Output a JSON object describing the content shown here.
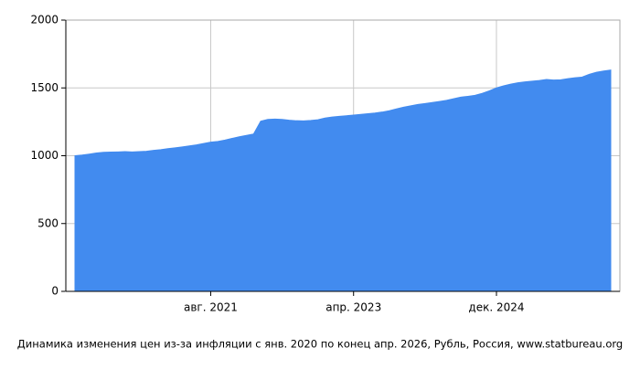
{
  "chart_data": {
    "type": "area",
    "caption": "Динамика изменения цен из-за инфляции с янв. 2020 по конец апр. 2026, Рубль, Россия, www.statbureau.org",
    "categories": [
      null,
      null,
      null,
      null,
      null,
      null,
      null,
      null,
      null,
      null,
      null,
      null,
      null,
      null,
      null,
      null,
      null,
      null,
      null,
      "авг. 2021",
      null,
      null,
      null,
      null,
      null,
      null,
      null,
      null,
      null,
      null,
      null,
      null,
      null,
      null,
      null,
      null,
      null,
      null,
      null,
      "апр. 2023",
      null,
      null,
      null,
      null,
      null,
      null,
      null,
      null,
      null,
      null,
      null,
      null,
      null,
      null,
      null,
      null,
      null,
      null,
      null,
      "дек. 2024",
      null,
      null,
      null,
      null,
      null,
      null,
      null,
      null,
      null,
      null,
      null,
      null,
      null,
      null,
      null,
      null
    ],
    "values": [
      1000,
      1005,
      1012,
      1020,
      1025,
      1027,
      1028,
      1030,
      1028,
      1030,
      1033,
      1040,
      1045,
      1052,
      1058,
      1065,
      1072,
      1080,
      1090,
      1100,
      1105,
      1115,
      1128,
      1140,
      1150,
      1160,
      1255,
      1268,
      1270,
      1268,
      1262,
      1258,
      1257,
      1260,
      1265,
      1278,
      1285,
      1290,
      1295,
      1300,
      1305,
      1310,
      1315,
      1322,
      1332,
      1345,
      1358,
      1368,
      1378,
      1385,
      1392,
      1400,
      1408,
      1420,
      1432,
      1438,
      1445,
      1460,
      1478,
      1500,
      1515,
      1528,
      1538,
      1545,
      1550,
      1555,
      1562,
      1558,
      1560,
      1568,
      1575,
      1580,
      1600,
      1615,
      1625,
      1632
    ],
    "color": "#428bef",
    "ylim": [
      0,
      2000
    ],
    "yticks": [
      0,
      500,
      1000,
      1500,
      2000
    ],
    "grid": true
  }
}
